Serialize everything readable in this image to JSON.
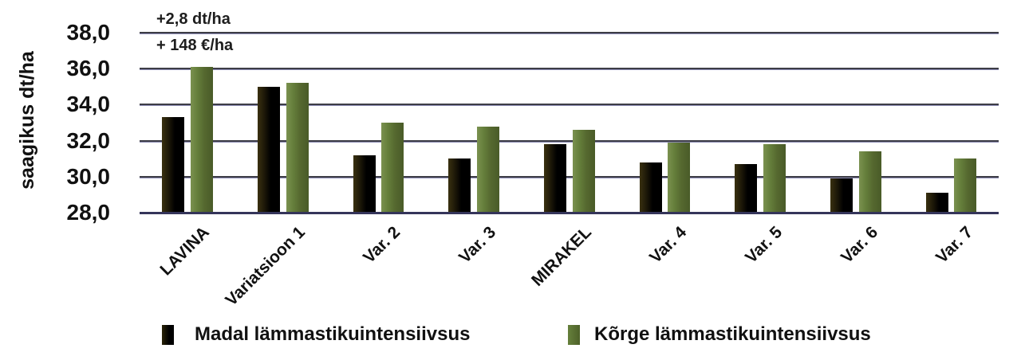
{
  "chart_data": {
    "type": "bar",
    "title": "",
    "ylabel": "saagikus dt/ha",
    "xlabel": "",
    "categories": [
      "LAVINA",
      "Variatsioon 1",
      "Var. 2",
      "Var. 3",
      "MIRAKEL",
      "Var. 4",
      "Var. 5",
      "Var. 6",
      "Var. 7"
    ],
    "series": [
      {
        "name": "Madal lämmastikuintensiivsus",
        "color": "#000000",
        "values": [
          33.3,
          35.0,
          31.2,
          31.0,
          31.8,
          30.8,
          30.7,
          29.9,
          29.1
        ]
      },
      {
        "name": "Kõrge lämmastikuintensiivsus",
        "color": "#55682f",
        "values": [
          36.1,
          35.2,
          33.0,
          32.8,
          32.6,
          31.9,
          31.8,
          31.4,
          31.0
        ]
      }
    ],
    "ylim": [
      28,
      38
    ],
    "ytick_step": 2,
    "ytick_labels": [
      "28,0",
      "30,0",
      "32,0",
      "34,0",
      "36,0",
      "38,0"
    ],
    "annotations": [
      "+2,8 dt/ha",
      "+ 148 €/ha"
    ],
    "grid": true,
    "legend_position": "bottom"
  }
}
